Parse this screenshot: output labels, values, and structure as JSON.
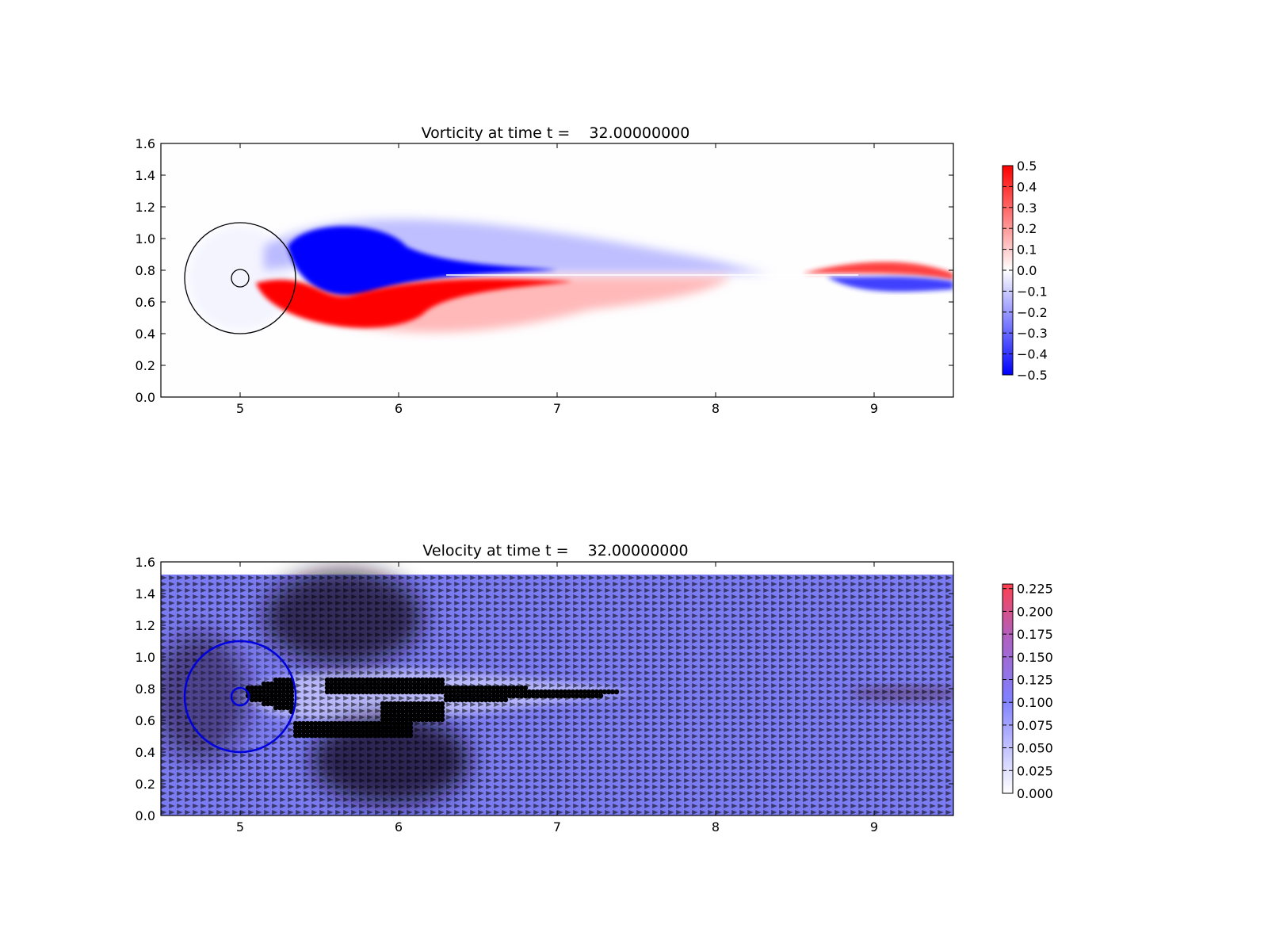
{
  "chart_data": [
    {
      "type": "heatmap",
      "title": "Vorticity at time t =    32.00000000",
      "xlabel": "",
      "ylabel": "",
      "xlim": [
        4.5,
        9.5
      ],
      "ylim": [
        0.0,
        1.6
      ],
      "xticks": [
        "5",
        "6",
        "7",
        "8",
        "9"
      ],
      "yticks": [
        "0.0",
        "0.2",
        "0.4",
        "0.6",
        "0.8",
        "1.0",
        "1.2",
        "1.4",
        "1.6"
      ],
      "colormap": {
        "min_color": "#0000ff",
        "mid_color": "#ffffff",
        "max_color": "#ff0000"
      },
      "colorbar": {
        "range": [
          -0.5,
          0.5
        ],
        "ticks": [
          "0.5",
          "0.4",
          "0.3",
          "0.2",
          "0.1",
          "0.0",
          "−0.1",
          "−0.2",
          "−0.3",
          "−0.4",
          "−0.5"
        ]
      },
      "circles": [
        {
          "cx": 5.0,
          "cy": 0.75,
          "r": 0.35,
          "color": "#000000"
        },
        {
          "cx": 5.0,
          "cy": 0.75,
          "r": 0.055,
          "color": "#000000"
        }
      ],
      "wake": {
        "upper_sign": "negative",
        "lower_sign": "positive",
        "centerline_y": 0.77,
        "dominant_vortices": [
          {
            "x": 5.7,
            "y": 0.9,
            "value": -0.5
          },
          {
            "x": 5.9,
            "y": 0.55,
            "value": 0.5
          },
          {
            "x": 9.25,
            "y": 0.84,
            "value": 0.4
          },
          {
            "x": 9.25,
            "y": 0.72,
            "value": -0.4
          }
        ]
      }
    },
    {
      "type": "heatmap",
      "title": "Velocity at time t =    32.00000000",
      "xlabel": "",
      "ylabel": "",
      "xlim": [
        4.5,
        9.5
      ],
      "ylim": [
        0.0,
        1.6
      ],
      "xticks": [
        "5",
        "6",
        "7",
        "8",
        "9"
      ],
      "yticks": [
        "0.0",
        "0.2",
        "0.4",
        "0.6",
        "0.8",
        "1.0",
        "1.2",
        "1.4",
        "1.6"
      ],
      "field_top": 1.52,
      "colormap": {
        "min_color": "#ffffff",
        "mid_color": "#8080ff",
        "max_color": "#ff4050"
      },
      "colorbar": {
        "range": [
          0.0,
          0.23
        ],
        "ticks": [
          "0.225",
          "0.200",
          "0.175",
          "0.150",
          "0.125",
          "0.100",
          "0.075",
          "0.050",
          "0.025",
          "0.000"
        ]
      },
      "circles": [
        {
          "cx": 5.0,
          "cy": 0.75,
          "r": 0.35,
          "color": "#0000dd"
        },
        {
          "cx": 5.0,
          "cy": 0.75,
          "r": 0.055,
          "color": "#0000dd"
        }
      ],
      "quiver": {
        "grid_dx": 0.05,
        "grid_dy": 0.04,
        "mean_speed": 0.1
      },
      "marker_region": {
        "x_range": [
          5.05,
          7.4
        ],
        "y_range": [
          0.48,
          0.88
        ]
      }
    }
  ]
}
